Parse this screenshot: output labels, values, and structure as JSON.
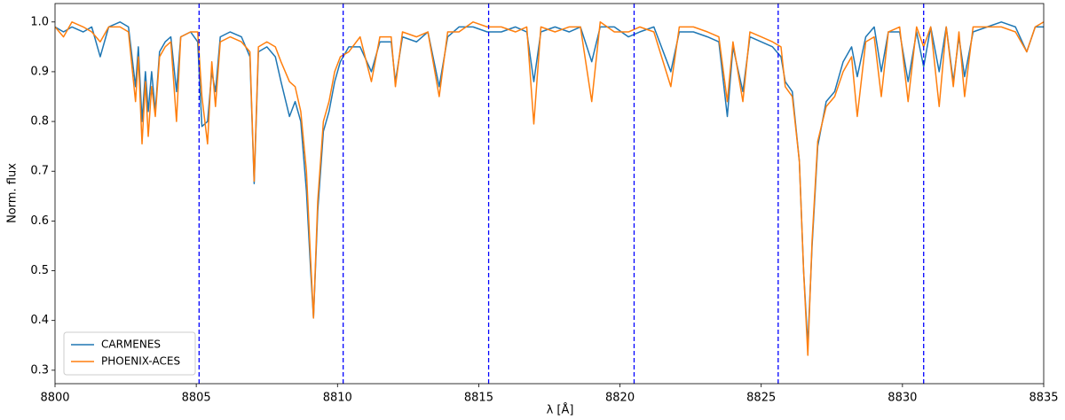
{
  "chart_data": {
    "type": "line",
    "x_label": "λ [Å]",
    "y_label": "Norm. flux",
    "xlim": [
      8800,
      8835
    ],
    "ylim": [
      0.273,
      1.037
    ],
    "xticks": [
      8800,
      8805,
      8810,
      8815,
      8820,
      8825,
      8830,
      8835
    ],
    "yticks": [
      0.3,
      0.4,
      0.5,
      0.6,
      0.7,
      0.8,
      0.9,
      {
        "value": 1,
        "label": "1.0"
      }
    ],
    "legend": "lower left",
    "vlines": [
      8805.1,
      8810.2,
      8815.35,
      8820.5,
      8825.6,
      8830.75
    ],
    "vline_color": "#0000ff",
    "x": [
      8800.0,
      8800.3,
      8800.6,
      8801.0,
      8801.3,
      8801.6,
      8801.9,
      8802.3,
      8802.6,
      8802.85,
      8802.95,
      8803.08,
      8803.2,
      8803.3,
      8803.42,
      8803.55,
      8803.7,
      8803.9,
      8804.1,
      8804.3,
      8804.45,
      8804.8,
      8805.05,
      8805.2,
      8805.4,
      8805.55,
      8805.68,
      8805.85,
      8806.2,
      8806.6,
      8806.9,
      8807.05,
      8807.2,
      8807.5,
      8807.8,
      8808.0,
      8808.3,
      8808.5,
      8808.7,
      8808.9,
      8809.05,
      8809.15,
      8809.3,
      8809.5,
      8809.7,
      8809.9,
      8810.1,
      8810.4,
      8810.8,
      8811.2,
      8811.5,
      8811.9,
      8812.05,
      8812.3,
      8812.8,
      8813.2,
      8813.6,
      8813.9,
      8814.3,
      8814.8,
      8815.3,
      8815.8,
      8816.3,
      8816.7,
      8816.95,
      8817.2,
      8817.7,
      8818.2,
      8818.6,
      8819.0,
      8819.3,
      8819.8,
      8820.3,
      8820.7,
      8821.2,
      8821.8,
      8822.1,
      8822.6,
      8823.1,
      8823.5,
      8823.8,
      8824.0,
      8824.35,
      8824.6,
      8825.0,
      8825.4,
      8825.7,
      8825.85,
      8826.1,
      8826.35,
      8826.5,
      8826.65,
      8826.8,
      8827.0,
      8827.3,
      8827.6,
      8827.9,
      8828.2,
      8828.4,
      8828.7,
      8829.0,
      8829.25,
      8829.5,
      8829.9,
      8830.2,
      8830.5,
      8830.75,
      8831.0,
      8831.3,
      8831.55,
      8831.8,
      8832.0,
      8832.2,
      8832.5,
      8833.0,
      8833.5,
      8834.0,
      8834.4,
      8834.7,
      8835.0
    ],
    "series": [
      {
        "name": "CARMENES",
        "color": "#1f77b4",
        "values": [
          0.99,
          0.98,
          0.99,
          0.98,
          0.99,
          0.93,
          0.99,
          1.0,
          0.99,
          0.87,
          0.95,
          0.8,
          0.9,
          0.82,
          0.9,
          0.82,
          0.94,
          0.96,
          0.97,
          0.86,
          0.97,
          0.98,
          0.96,
          0.79,
          0.8,
          0.9,
          0.86,
          0.97,
          0.98,
          0.97,
          0.93,
          0.675,
          0.94,
          0.95,
          0.93,
          0.88,
          0.81,
          0.84,
          0.8,
          0.66,
          0.5,
          0.405,
          0.62,
          0.78,
          0.82,
          0.88,
          0.92,
          0.95,
          0.95,
          0.9,
          0.96,
          0.96,
          0.88,
          0.97,
          0.96,
          0.98,
          0.87,
          0.97,
          0.99,
          0.99,
          0.98,
          0.98,
          0.99,
          0.98,
          0.88,
          0.98,
          0.99,
          0.98,
          0.99,
          0.92,
          0.99,
          0.99,
          0.97,
          0.98,
          0.99,
          0.9,
          0.98,
          0.98,
          0.97,
          0.96,
          0.81,
          0.95,
          0.86,
          0.97,
          0.96,
          0.95,
          0.93,
          0.88,
          0.86,
          0.72,
          0.5,
          0.35,
          0.55,
          0.75,
          0.84,
          0.86,
          0.92,
          0.95,
          0.89,
          0.97,
          0.99,
          0.9,
          0.98,
          0.98,
          0.88,
          0.98,
          0.91,
          0.99,
          0.9,
          0.99,
          0.88,
          0.97,
          0.89,
          0.98,
          0.99,
          1.0,
          0.99,
          0.94,
          0.99,
          0.99
        ]
      },
      {
        "name": "PHOENIX-ACES",
        "color": "#ff7f0e",
        "values": [
          0.99,
          0.97,
          1.0,
          0.99,
          0.98,
          0.96,
          0.99,
          0.99,
          0.98,
          0.84,
          0.93,
          0.755,
          0.88,
          0.77,
          0.87,
          0.81,
          0.93,
          0.95,
          0.96,
          0.8,
          0.97,
          0.98,
          0.98,
          0.85,
          0.755,
          0.92,
          0.83,
          0.96,
          0.97,
          0.96,
          0.94,
          0.68,
          0.95,
          0.96,
          0.95,
          0.92,
          0.88,
          0.87,
          0.82,
          0.7,
          0.52,
          0.405,
          0.64,
          0.8,
          0.84,
          0.9,
          0.93,
          0.94,
          0.97,
          0.88,
          0.97,
          0.97,
          0.87,
          0.98,
          0.97,
          0.98,
          0.85,
          0.98,
          0.98,
          1.0,
          0.99,
          0.99,
          0.98,
          0.99,
          0.795,
          0.99,
          0.98,
          0.99,
          0.99,
          0.84,
          1.0,
          0.98,
          0.98,
          0.99,
          0.98,
          0.87,
          0.99,
          0.99,
          0.98,
          0.97,
          0.84,
          0.96,
          0.84,
          0.98,
          0.97,
          0.96,
          0.95,
          0.87,
          0.85,
          0.72,
          0.5,
          0.33,
          0.56,
          0.76,
          0.83,
          0.85,
          0.9,
          0.93,
          0.81,
          0.96,
          0.97,
          0.85,
          0.98,
          0.99,
          0.84,
          0.99,
          0.95,
          0.99,
          0.83,
          0.99,
          0.87,
          0.98,
          0.85,
          0.99,
          0.99,
          0.99,
          0.98,
          0.94,
          0.99,
          1.0
        ]
      }
    ]
  }
}
